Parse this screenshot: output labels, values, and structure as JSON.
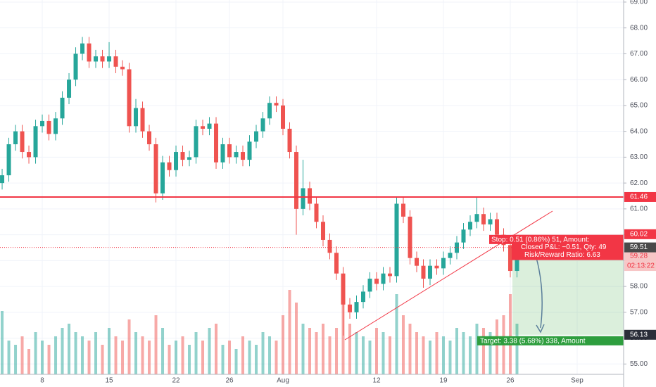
{
  "chart_data": {
    "type": "candlestick",
    "up_color": "#26a69a",
    "down_color": "#ef5350",
    "ylim": [
      54.6,
      69.08
    ],
    "yticks": [
      {
        "value": 55,
        "label": "55.00"
      },
      {
        "value": 56,
        "label": "56.00"
      },
      {
        "value": 57,
        "label": "57.00"
      },
      {
        "value": 58,
        "label": "58.00"
      },
      {
        "value": 59,
        "label": "59.00"
      },
      {
        "value": 60,
        "label": "60.00"
      },
      {
        "value": 61,
        "label": "61.00"
      },
      {
        "value": 62,
        "label": "62.00"
      },
      {
        "value": 63,
        "label": "63.00"
      },
      {
        "value": 64,
        "label": "64.00"
      },
      {
        "value": 65,
        "label": "65.00"
      },
      {
        "value": 66,
        "label": "66.00"
      },
      {
        "value": 67,
        "label": "67.00"
      },
      {
        "value": 68,
        "label": "68.00"
      },
      {
        "value": 69,
        "label": "69.00"
      }
    ],
    "xlim": [
      -0.32,
      92.95
    ],
    "xticks": [
      {
        "value": 6,
        "label": "8"
      },
      {
        "value": 16,
        "label": "15"
      },
      {
        "value": 26,
        "label": "22"
      },
      {
        "value": 34,
        "label": "26"
      },
      {
        "value": 42,
        "label": "Aug"
      },
      {
        "value": 56,
        "label": "12"
      },
      {
        "value": 66,
        "label": "19"
      },
      {
        "value": 76,
        "label": "26"
      },
      {
        "value": 86,
        "label": "Sep"
      }
    ],
    "grid": true,
    "open": [
      62.0,
      62.3,
      63.5,
      64.0,
      63.2,
      63.0,
      64.2,
      64.4,
      63.9,
      64.5,
      65.3,
      66.0,
      67.0,
      67.4,
      66.7,
      66.9,
      66.7,
      66.9,
      66.5,
      66.4,
      64.2,
      64.9,
      64.0,
      63.5,
      61.6,
      62.8,
      62.5,
      63.2,
      62.9,
      63.0,
      64.2,
      64.1,
      64.3,
      62.8,
      63.5,
      63.0,
      63.2,
      62.9,
      63.6,
      64.0,
      64.5,
      65.1,
      65.0,
      64.1,
      63.2,
      61.0,
      61.8,
      61.2,
      60.5,
      59.8,
      59.3,
      58.5,
      57.3,
      57.0,
      57.4,
      57.8,
      58.3,
      58.1,
      58.5,
      58.4,
      61.2,
      60.7,
      59.1,
      58.8,
      58.3,
      58.8,
      58.7,
      59.1,
      59.3,
      59.7,
      60.2,
      60.5,
      60.8,
      60.4,
      60.6,
      60.0,
      59.6,
      58.6
    ],
    "high": [
      62.55,
      63.75,
      64.25,
      64.25,
      63.45,
      64.45,
      64.65,
      64.65,
      64.75,
      65.55,
      66.25,
      67.25,
      67.65,
      67.65,
      67.15,
      67.15,
      67.45,
      67.15,
      66.75,
      66.65,
      65.25,
      65.15,
      64.25,
      63.75,
      63.05,
      63.05,
      63.45,
      63.45,
      63.25,
      64.45,
      64.45,
      64.55,
      64.55,
      63.75,
      63.75,
      63.45,
      63.45,
      63.85,
      64.25,
      64.75,
      65.35,
      65.35,
      65.25,
      64.35,
      63.45,
      62.9,
      62.05,
      61.45,
      60.75,
      60.05,
      59.55,
      58.75,
      57.55,
      57.65,
      58.05,
      58.55,
      58.55,
      58.75,
      58.75,
      61.45,
      61.45,
      60.95,
      59.35,
      59.05,
      59.05,
      59.05,
      59.35,
      59.55,
      59.95,
      60.45,
      60.75,
      61.45,
      61.05,
      60.85,
      60.85,
      60.25,
      59.85,
      59.76
    ],
    "low": [
      61.75,
      62.05,
      63.25,
      62.95,
      62.75,
      62.75,
      63.95,
      63.65,
      63.65,
      64.25,
      65.05,
      65.75,
      66.75,
      66.45,
      66.45,
      66.45,
      66.45,
      66.25,
      66.15,
      63.95,
      63.95,
      63.75,
      63.25,
      61.25,
      61.35,
      62.25,
      62.25,
      62.65,
      62.65,
      62.75,
      63.85,
      63.85,
      62.55,
      62.55,
      62.75,
      62.75,
      62.65,
      62.65,
      63.35,
      63.75,
      64.25,
      64.75,
      63.85,
      62.95,
      60.0,
      60.75,
      60.95,
      60.25,
      59.55,
      59.05,
      58.25,
      56.1,
      56.75,
      56.75,
      57.15,
      57.55,
      57.85,
      57.85,
      58.15,
      58.15,
      60.45,
      58.85,
      58.55,
      57.95,
      58.05,
      58.45,
      58.45,
      58.85,
      59.05,
      59.45,
      59.95,
      60.25,
      60.15,
      60.15,
      59.75,
      59.35,
      58.35,
      58.35
    ],
    "close": [
      62.3,
      63.5,
      64.0,
      63.2,
      63.0,
      64.2,
      64.4,
      63.9,
      64.5,
      65.3,
      66.0,
      67.0,
      67.4,
      66.7,
      66.9,
      66.7,
      66.9,
      66.5,
      66.4,
      64.2,
      64.9,
      64.0,
      63.5,
      61.6,
      62.8,
      62.5,
      63.2,
      62.9,
      63.0,
      64.2,
      64.1,
      64.3,
      62.8,
      63.5,
      63.0,
      63.2,
      62.9,
      63.6,
      64.0,
      64.5,
      65.1,
      65.0,
      64.1,
      63.2,
      61.0,
      61.8,
      61.2,
      60.5,
      59.8,
      59.3,
      58.5,
      57.3,
      57.0,
      57.4,
      57.8,
      58.3,
      58.1,
      58.5,
      58.4,
      61.2,
      60.7,
      59.1,
      58.8,
      58.3,
      58.8,
      58.7,
      59.1,
      59.3,
      59.7,
      60.2,
      60.5,
      60.8,
      60.4,
      60.6,
      60.0,
      59.6,
      58.6,
      59.51
    ],
    "volume": [
      75,
      40,
      35,
      45,
      30,
      50,
      40,
      35,
      45,
      55,
      60,
      50,
      45,
      40,
      50,
      35,
      55,
      45,
      40,
      65,
      50,
      45,
      40,
      70,
      55,
      35,
      40,
      45,
      35,
      50,
      40,
      55,
      60,
      35,
      40,
      30,
      45,
      40,
      35,
      50,
      45,
      40,
      70,
      100,
      85,
      60,
      55,
      50,
      60,
      45,
      55,
      90,
      60,
      50,
      45,
      40,
      55,
      50,
      45,
      95,
      70,
      60,
      50,
      45,
      40,
      50,
      45,
      40,
      55,
      50,
      45,
      60,
      55,
      50,
      65,
      70,
      95,
      60
    ],
    "resistance": {
      "value": 61.46,
      "label": "61.46"
    },
    "position": {
      "stop": {
        "value": 60.02,
        "label": "60.02"
      },
      "entry": {
        "value": 59.51,
        "label": "59.51"
      },
      "target": {
        "value": 56.13,
        "label": "56.13"
      },
      "stop_text": "Stop: 0.51 (0.86%) 51, Amount:",
      "pnl_text": "Closed P&L: −0.51, Qty: 49",
      "ratio_text": "Risk/Reward Ratio: 6.63",
      "target_text": "Target: 3.38 (5.68%) 338, Amount"
    },
    "marker": {
      "value": 59.28,
      "label": "59.28"
    },
    "countdown": "02:13:22"
  }
}
